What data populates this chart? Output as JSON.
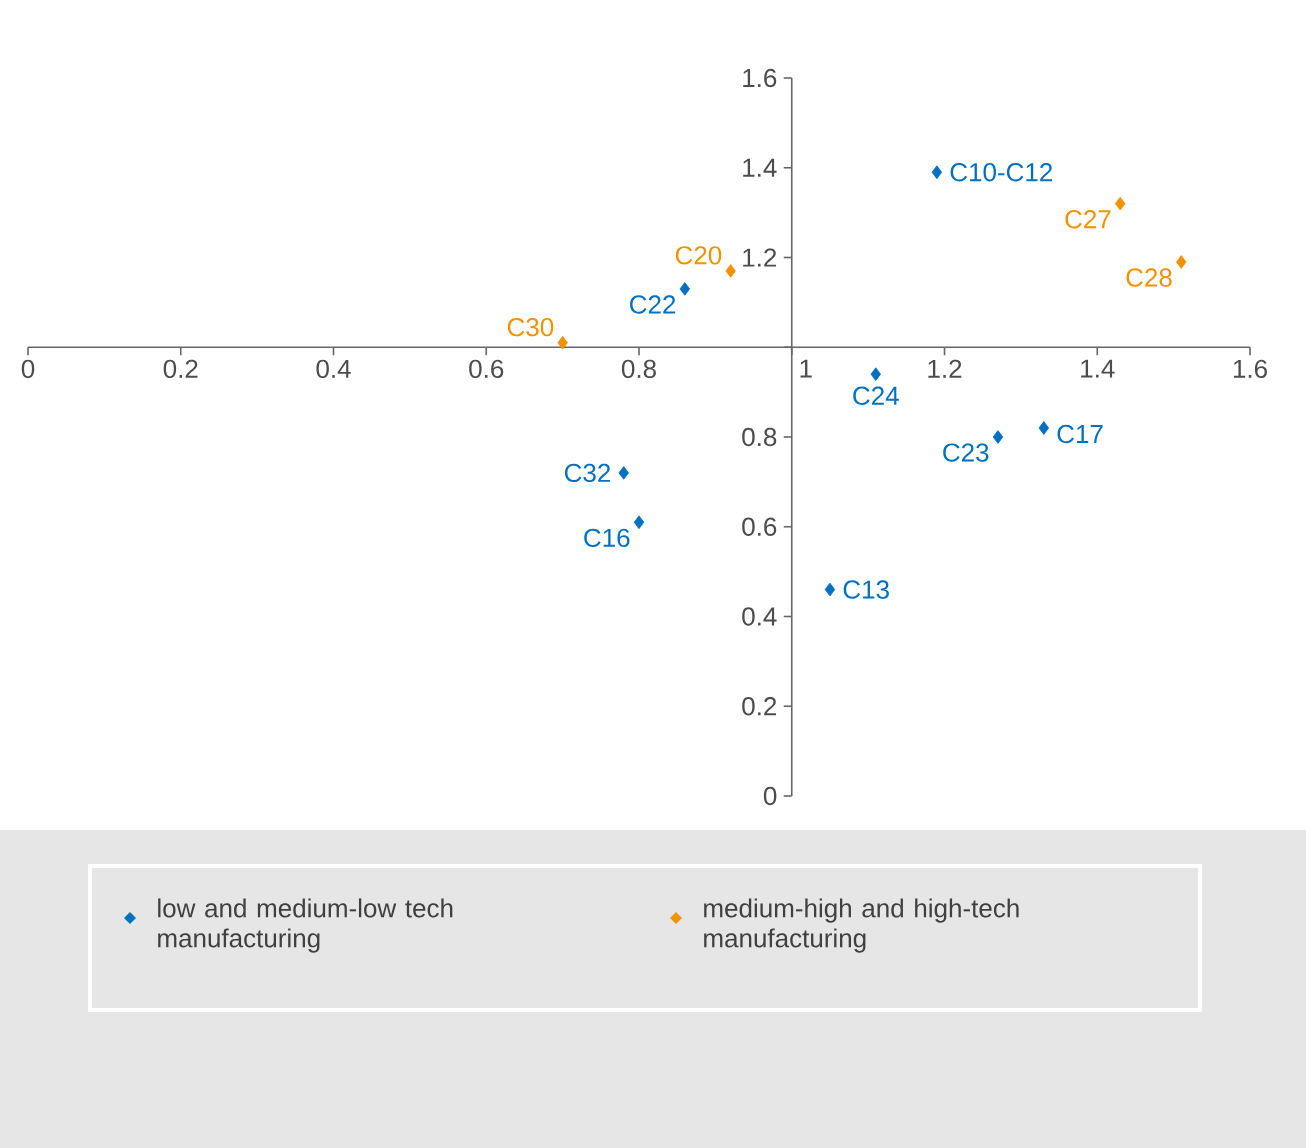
{
  "chart_data": {
    "type": "scatter",
    "marker": "diamond",
    "legend": "bottom",
    "xlim": [
      0,
      1.6
    ],
    "ylim": [
      0,
      1.6
    ],
    "xticks": [
      0,
      0.2,
      0.4,
      0.6,
      0.8,
      1,
      1.2,
      1.4,
      1.6
    ],
    "yticks": [
      0,
      0.2,
      0.4,
      0.6,
      0.8,
      {
        "value": 1,
        "label": null
      },
      1.2,
      1.4,
      1.6
    ],
    "series": [
      {
        "name": "low and medium-low tech manufacturing",
        "color": "#0070c0",
        "x": [
          1.19,
          0.86,
          1.11,
          1.27,
          1.33,
          0.78,
          0.8,
          1.05
        ],
        "values": [
          1.39,
          1.13,
          0.94,
          0.8,
          0.82,
          0.72,
          0.61,
          0.46
        ]
      },
      {
        "name": "medium-high and high-tech manufacturing",
        "color": "#f39200",
        "x": [
          1.43,
          1.51,
          0.92,
          0.7
        ],
        "values": [
          1.32,
          1.19,
          1.17,
          1.01
        ]
      }
    ],
    "annotations": [
      {
        "text": "C10-C12",
        "x": 1.19,
        "y": 1.39
      },
      {
        "text": "C27",
        "x": 1.43,
        "y": 1.32
      },
      {
        "text": "C28",
        "x": 1.51,
        "y": 1.19
      },
      {
        "text": "C20",
        "x": 0.92,
        "y": 1.17
      },
      {
        "text": "C22",
        "x": 0.86,
        "y": 1.13
      },
      {
        "text": "C30",
        "x": 0.7,
        "y": 1.01
      },
      {
        "text": "C24",
        "x": 1.11,
        "y": 0.94
      },
      {
        "text": "C23",
        "x": 1.27,
        "y": 0.8
      },
      {
        "text": "C17",
        "x": 1.33,
        "y": 0.82
      },
      {
        "text": "C32",
        "x": 0.78,
        "y": 0.72
      },
      {
        "text": "C16",
        "x": 0.8,
        "y": 0.61
      },
      {
        "text": "C13",
        "x": 1.05,
        "y": 0.46
      }
    ]
  }
}
